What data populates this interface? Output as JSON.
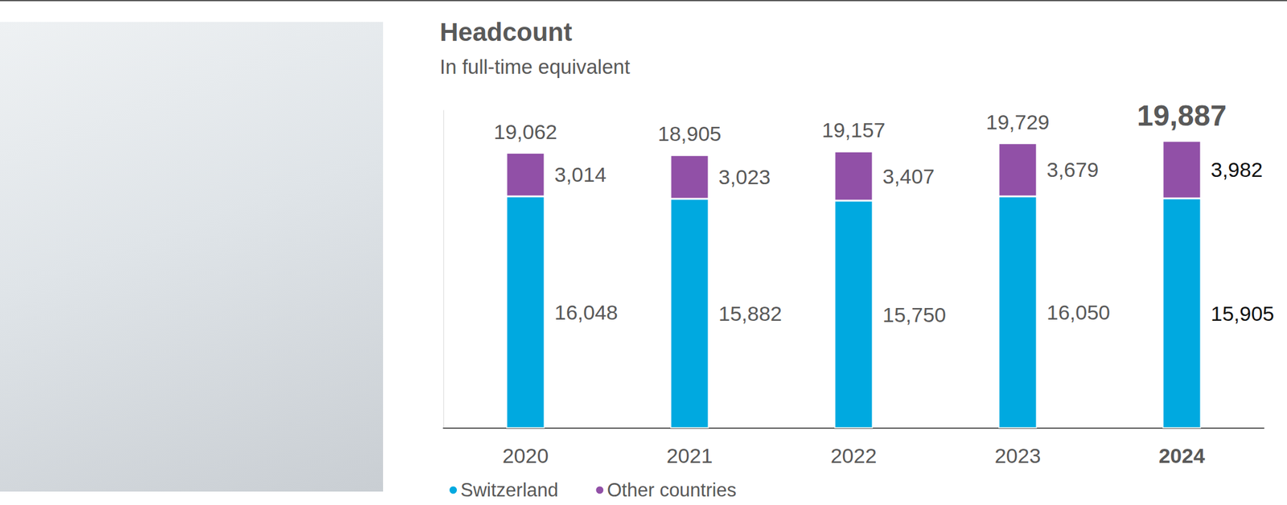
{
  "chart_data": {
    "type": "bar",
    "title": "Headcount",
    "subtitle": "In full-time equivalent",
    "categories": [
      "2020",
      "2021",
      "2022",
      "2023",
      "2024"
    ],
    "series": [
      {
        "name": "Switzerland",
        "color": "#00a9e0",
        "values": [
          16048,
          15882,
          15750,
          16050,
          15905
        ],
        "value_labels": [
          "16,048",
          "15,882",
          "15,750",
          "16,050",
          "15,905"
        ]
      },
      {
        "name": "Other countries",
        "color": "#9150a7",
        "values": [
          3014,
          3023,
          3407,
          3679,
          3982
        ],
        "value_labels": [
          "3,014",
          "3,023",
          "3,407",
          "3,679",
          "3,982"
        ]
      }
    ],
    "totals": [
      19062,
      18905,
      19157,
      19729,
      19887
    ],
    "total_labels": [
      "19,062",
      "18,905",
      "19,157",
      "19,729",
      "19,887"
    ],
    "ylim": [
      0,
      22000
    ],
    "stacked": true,
    "data_labels": true,
    "grid": false,
    "legend": "bottom left",
    "tick_labels": "x"
  }
}
